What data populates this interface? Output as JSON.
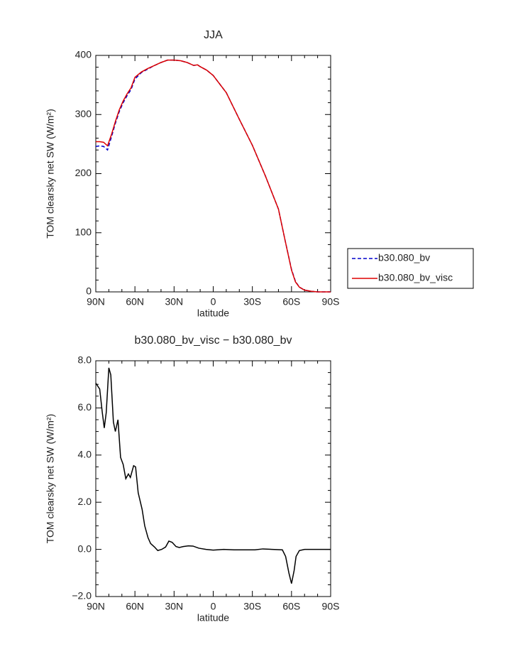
{
  "chart_data": [
    {
      "type": "line",
      "title": "JJA",
      "x_label": "latitude",
      "y_label": "TOM clearsky net SW (W/m²)",
      "x": [
        90,
        87,
        84,
        81,
        78,
        75,
        72,
        69,
        66,
        63,
        60,
        55,
        50,
        45,
        40,
        35,
        30,
        25,
        20,
        15,
        12,
        10,
        5,
        0,
        -10,
        -20,
        -30,
        -40,
        -50,
        -55,
        -60,
        -63,
        -66,
        -70,
        -75,
        -80,
        -85,
        -90
      ],
      "series": [
        {
          "name": "b30.080_bv",
          "color": "#0000cc",
          "line_style": "dashed",
          "values": [
            246,
            247,
            246,
            240,
            262,
            285,
            305,
            320,
            332,
            342,
            360,
            371,
            377,
            383,
            388,
            392,
            392,
            391,
            388,
            383,
            384,
            381,
            375,
            366,
            337,
            292,
            248,
            196,
            140,
            88,
            38,
            18,
            8,
            3,
            1,
            0,
            0,
            0
          ]
        },
        {
          "name": "b30.080_bv_visc",
          "color": "#dd0000",
          "line_style": "solid",
          "values": [
            254,
            254,
            253,
            247,
            266,
            288,
            308,
            323,
            335,
            345,
            363,
            372,
            378,
            383,
            388,
            392,
            392,
            391,
            388,
            383,
            384,
            381,
            375,
            366,
            337,
            292,
            248,
            196,
            140,
            88,
            37,
            17,
            8,
            3,
            1,
            0,
            0,
            0
          ]
        }
      ],
      "xlim": [
        90,
        -90
      ],
      "ylim": [
        0,
        400
      ],
      "xticks": [
        {
          "value": 90,
          "label": "90N"
        },
        {
          "value": 60,
          "label": "60N"
        },
        {
          "value": 30,
          "label": "30N"
        },
        0,
        {
          "value": -30,
          "label": "30S"
        },
        {
          "value": -60,
          "label": "60S"
        },
        {
          "value": -90,
          "label": "90S"
        }
      ],
      "yticks": [
        0,
        100,
        200,
        300,
        400
      ],
      "legend": "right"
    },
    {
      "type": "line",
      "title": "b30.080_bv_visc − b30.080_bv",
      "x_label": "latitude",
      "y_label": "TOM clearsky net SW (W/m²)",
      "x": [
        90,
        87,
        85,
        83.5,
        82,
        80,
        78.5,
        76.5,
        75,
        73,
        71,
        69,
        67,
        65,
        63.5,
        61,
        59.5,
        57.5,
        54.5,
        52.5,
        50,
        48,
        45,
        42.5,
        39.5,
        36.5,
        34,
        31.5,
        28.5,
        26,
        23,
        19,
        15.5,
        11,
        5.5,
        0,
        -8,
        -16,
        -32,
        -38,
        -53,
        -55.5,
        -58,
        -60,
        -62,
        -63.5,
        -66,
        -70,
        -90
      ],
      "series": [
        {
          "color": "#000000",
          "line_style": "solid",
          "values": [
            7.05,
            6.8,
            5.8,
            5.15,
            5.8,
            7.7,
            7.4,
            5.4,
            5.0,
            5.5,
            3.9,
            3.6,
            3.0,
            3.2,
            3.05,
            3.55,
            3.5,
            2.4,
            1.7,
            1.0,
            0.5,
            0.25,
            0.1,
            -0.05,
            0.0,
            0.1,
            0.35,
            0.3,
            0.12,
            0.08,
            0.12,
            0.15,
            0.14,
            0.05,
            0.0,
            -0.03,
            0.0,
            -0.02,
            -0.02,
            0.02,
            -0.02,
            -0.3,
            -1.0,
            -1.45,
            -0.9,
            -0.3,
            -0.05,
            0.0,
            0.0
          ]
        }
      ],
      "xlim": [
        90,
        -90
      ],
      "ylim": [
        -2,
        8
      ],
      "xticks": [
        {
          "value": 90,
          "label": "90N"
        },
        {
          "value": 60,
          "label": "60N"
        },
        {
          "value": 30,
          "label": "30N"
        },
        0,
        {
          "value": -30,
          "label": "30S"
        },
        {
          "value": -60,
          "label": "60S"
        },
        {
          "value": -90,
          "label": "90S"
        }
      ],
      "yticks": [
        {
          "value": -2,
          "label": "−2.0"
        },
        {
          "value": 0,
          "label": "0.0"
        },
        {
          "value": 2,
          "label": "2.0"
        },
        {
          "value": 4,
          "label": "4.0"
        },
        {
          "value": 6,
          "label": "6.0"
        },
        {
          "value": 8,
          "label": "8.0"
        }
      ]
    }
  ]
}
